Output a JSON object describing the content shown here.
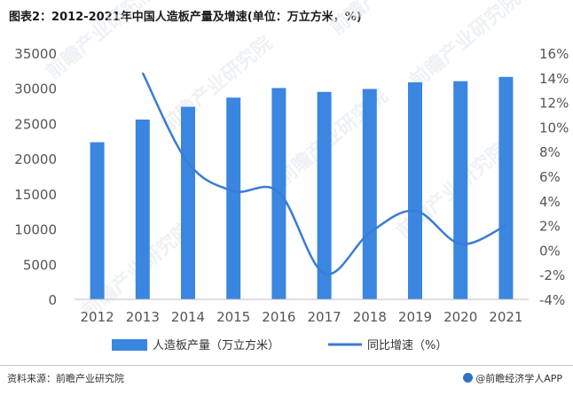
{
  "title": "图表2：2012-2021年中国人造板产量及增速(单位：万立方米，%)",
  "source": "资料来源：前瞻产业研究院",
  "brand": "@前瞻经济学人APP",
  "watermark": "前瞻产业研究院",
  "colors": {
    "bar": "#3a86e0",
    "line": "#3a7bd5",
    "axis_text": "#555555",
    "grid": "#d9d9d9"
  },
  "chart_data": {
    "type": "bar",
    "categories": [
      "2012",
      "2013",
      "2014",
      "2015",
      "2016",
      "2017",
      "2018",
      "2019",
      "2020",
      "2021"
    ],
    "series": [
      {
        "name": "人造板产量（万立方米）",
        "type": "bar",
        "axis": "left",
        "values": [
          22336,
          25560,
          27372,
          28680,
          30042,
          29486,
          29909,
          30859,
          31011,
          31625
        ]
      },
      {
        "name": "同比增速（%）",
        "type": "line",
        "axis": "right",
        "smooth": true,
        "values": [
          null,
          14.4,
          7.1,
          4.8,
          4.7,
          -1.9,
          1.4,
          3.2,
          0.5,
          2.0
        ]
      }
    ],
    "y_left": {
      "ylim": [
        0,
        35000
      ],
      "ticks": [
        "0",
        "5000",
        "10000",
        "15000",
        "20000",
        "25000",
        "30000",
        "35000"
      ]
    },
    "y_right": {
      "ylim": [
        -4,
        16
      ],
      "ticks": [
        "-4%",
        "-2%",
        "0%",
        "2%",
        "4%",
        "6%",
        "8%",
        "10%",
        "12%",
        "14%",
        "16%"
      ]
    },
    "legend": "bottom",
    "grid": false
  }
}
